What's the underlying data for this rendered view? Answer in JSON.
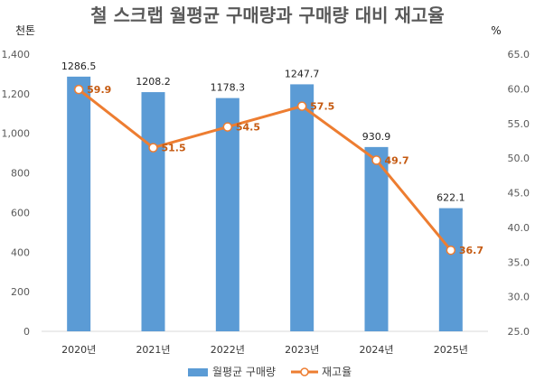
{
  "chart_data": {
    "type": "bar",
    "title": "철 스크랩 월평균 구매량과 구매량 대비 재고율",
    "left_unit": "천톤",
    "right_unit": "%",
    "categories": [
      "2020년",
      "2021년",
      "2022년",
      "2023년",
      "2024년",
      "2025년"
    ],
    "series": [
      {
        "name": "월평균 구매량",
        "type": "bar",
        "axis": "left",
        "color": "#5b9bd5",
        "values": [
          1286.5,
          1208.2,
          1178.3,
          1247.7,
          930.9,
          622.1
        ],
        "labels": [
          "1286.5",
          "1208.2",
          "1178.3",
          "1247.7",
          "930.9",
          "622.1"
        ]
      },
      {
        "name": "재고율",
        "type": "line",
        "axis": "right",
        "color": "#ed7d31",
        "values": [
          59.9,
          51.5,
          54.5,
          57.5,
          49.7,
          36.7
        ],
        "labels": [
          "59.9",
          "51.5",
          "54.5",
          "57.5",
          "49.7",
          "36.7"
        ]
      }
    ],
    "left_axis": {
      "min": 0,
      "max": 1400,
      "step": 200,
      "tick_labels": [
        "0",
        "200",
        "400",
        "600",
        "800",
        "1,000",
        "1,200",
        "1,400"
      ]
    },
    "right_axis": {
      "min": 25,
      "max": 65,
      "step": 5,
      "tick_labels": [
        "25.0",
        "30.0",
        "35.0",
        "40.0",
        "45.0",
        "50.0",
        "55.0",
        "60.0",
        "65.0"
      ]
    },
    "grid": false,
    "legend_position": "bottom"
  }
}
